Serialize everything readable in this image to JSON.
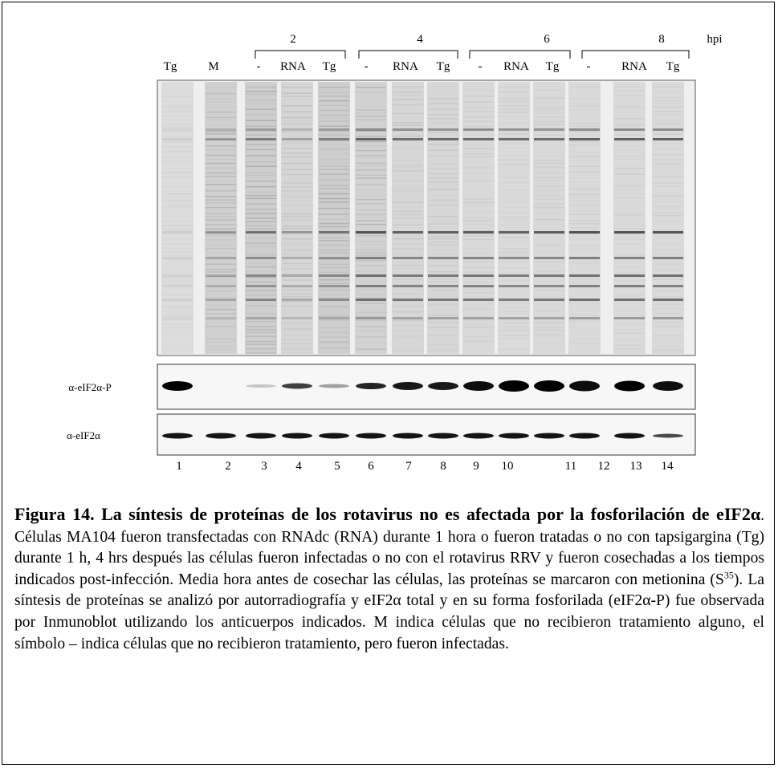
{
  "figure": {
    "time_labels": [
      "2",
      "4",
      "6",
      "8"
    ],
    "time_unit": "hpi",
    "lane_labels": [
      "Tg",
      "M",
      "-",
      "RNA",
      "Tg",
      "-",
      "RNA",
      "Tg",
      "-",
      "RNA",
      "Tg",
      "-",
      "RNA",
      "Tg"
    ],
    "blot_labels": [
      "α-eIF2α-P",
      "α-eIF2α"
    ],
    "lane_numbers": [
      "1",
      "2",
      "3",
      "4",
      "5",
      "6",
      "7",
      "8",
      "9",
      "10",
      "11",
      "12",
      "13",
      "14"
    ]
  },
  "caption": {
    "title": "Figura 14. La síntesis de proteínas de los rotavirus no es afectada por la fosforilación de eIF2α",
    "body_1": ". Células MA104 fueron transfectadas con RNAdc (RNA) durante 1 hora o fueron tratadas o no con tapsigargina (Tg) durante 1 h,  4 hrs después las células fueron infectadas o no con el rotavirus RRV y fueron cosechadas a los tiempos indicados post-infección.  Media hora antes de cosechar las células, las proteínas se marcaron con metionina (S",
    "superscript": "35",
    "body_2": "). La síntesis de proteínas  se analizó por autorradiografía  y eIF2α total y en su forma fosforilada (eIF2α-P) fue observada por Inmunoblot utilizando los anticuerpos indicados. M indica células que no recibieron tratamiento alguno, el símbolo – indica células que no recibieron tratamiento, pero fueron infectadas."
  }
}
